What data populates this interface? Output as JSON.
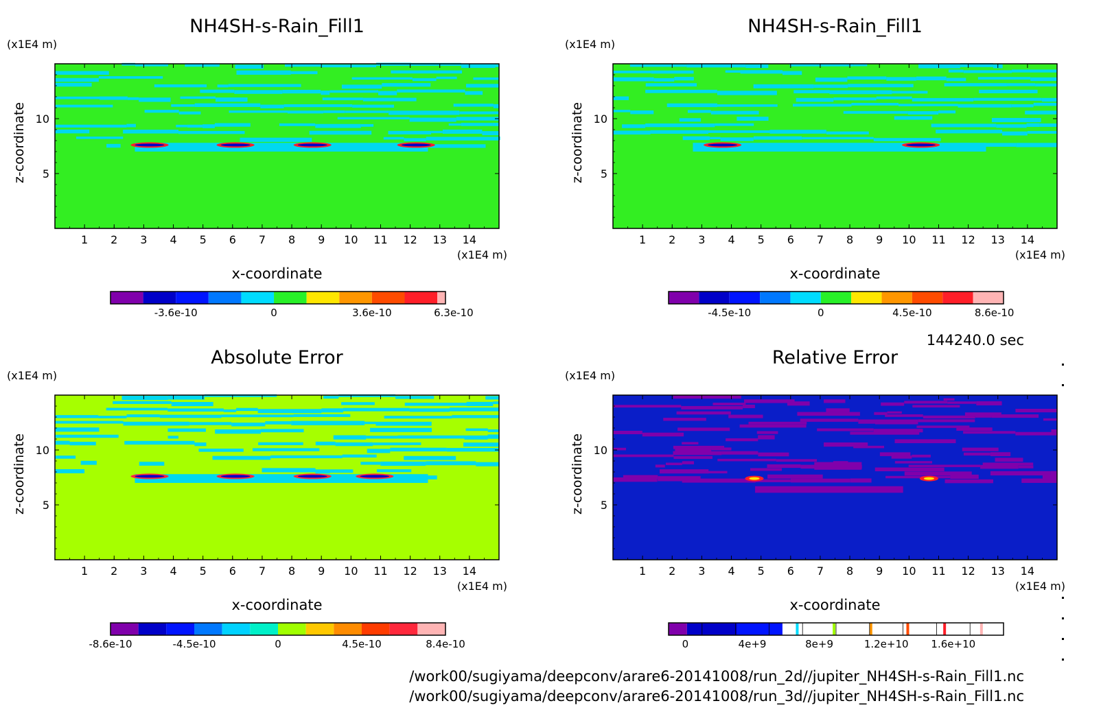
{
  "time_label": "144240.0 sec",
  "footer": {
    "path1": "/work00/sugiyama/deepconv/arare6-20141008/run_2d//jupiter_NH4SH-s-Rain_Fill1.nc",
    "path2": "/work00/sugiyama/deepconv/arare6-20141008/run_3d//jupiter_NH4SH-s-Rain_Fill1.nc"
  },
  "colors": {
    "palette11": [
      "#8000ab",
      "#0000c8",
      "#0014ff",
      "#0078ff",
      "#00dcff",
      "#28f028",
      "#ffe600",
      "#ff9600",
      "#ff4b00",
      "#ff1e28",
      "#ffb4b4"
    ],
    "palette12": [
      "#8000ab",
      "#0000c8",
      "#0014ff",
      "#0078ff",
      "#00d2ff",
      "#00f0c8",
      "#a0ff00",
      "#ffc800",
      "#ff8c00",
      "#ff3c00",
      "#ff283c",
      "#ffb4b4"
    ],
    "panel_bg_green": "#33ee22",
    "panel_bg_lime": "#a6ff00",
    "panel_bg_blue": "#0a1ec8",
    "band_cyan": "#00d8f0",
    "band_purple": "#8000ab"
  },
  "chart_data": [
    {
      "type": "heatmap",
      "title": "NH4SH-s-Rain_Fill1",
      "xlabel": "x-coordinate",
      "ylabel": "z-coordinate",
      "x_unit": "(x1E4 m)",
      "y_unit": "(x1E4 m)",
      "xticks": [
        "1",
        "2",
        "3",
        "4",
        "5",
        "6",
        "7",
        "8",
        "9",
        "10",
        "11",
        "12",
        "13",
        "14"
      ],
      "yticks": [
        "5",
        "10"
      ],
      "xlim": [
        0,
        15
      ],
      "ylim": [
        0,
        15
      ],
      "colorbar_labels": [
        {
          "text": "-3.6e-10",
          "seg": 2
        },
        {
          "text": "0",
          "seg": 5
        },
        {
          "text": "3.6e-10",
          "seg": 8
        },
        {
          "text": "6.3e-10",
          "seg": 10.5
        }
      ],
      "colorbar_segments": 11,
      "colorbar_last_narrow": true,
      "background": "#33ee22",
      "band_color": "#00d8f0",
      "cells": [
        [
          2.7,
          7.6
        ],
        [
          5.6,
          7.6
        ],
        [
          8.2,
          7.6
        ],
        [
          11.7,
          7.6
        ]
      ]
    },
    {
      "type": "heatmap",
      "title": "NH4SH-s-Rain_Fill1",
      "xlabel": "x-coordinate",
      "ylabel": "z-coordinate",
      "x_unit": "(x1E4 m)",
      "y_unit": "(x1E4 m)",
      "xticks": [
        "1",
        "2",
        "3",
        "4",
        "5",
        "6",
        "7",
        "8",
        "9",
        "10",
        "11",
        "12",
        "13",
        "14"
      ],
      "yticks": [
        "5",
        "10"
      ],
      "xlim": [
        0,
        15
      ],
      "ylim": [
        0,
        15
      ],
      "colorbar_labels": [
        {
          "text": "-4.5e-10",
          "seg": 2
        },
        {
          "text": "0",
          "seg": 5
        },
        {
          "text": "4.5e-10",
          "seg": 8
        },
        {
          "text": "8.6e-10",
          "seg": 10.7
        }
      ],
      "colorbar_segments": 11,
      "colorbar_last_narrow": false,
      "background": "#33ee22",
      "band_color": "#00d8f0",
      "cells": [
        [
          3.2,
          7.6
        ],
        [
          9.9,
          7.6
        ]
      ]
    },
    {
      "type": "heatmap",
      "title": "Absolute Error",
      "xlabel": "x-coordinate",
      "ylabel": "z-coordinate",
      "x_unit": "(x1E4 m)",
      "y_unit": "(x1E4 m)",
      "xticks": [
        "1",
        "2",
        "3",
        "4",
        "5",
        "6",
        "7",
        "8",
        "9",
        "10",
        "11",
        "12",
        "13",
        "14"
      ],
      "yticks": [
        "5",
        "10"
      ],
      "xlim": [
        0,
        15
      ],
      "ylim": [
        0,
        15
      ],
      "colorbar_labels": [
        {
          "text": "-8.6e-10",
          "seg": 0
        },
        {
          "text": "-4.5e-10",
          "seg": 3
        },
        {
          "text": "0",
          "seg": 6
        },
        {
          "text": "4.5e-10",
          "seg": 9
        },
        {
          "text": "8.4e-10",
          "seg": 12
        }
      ],
      "colorbar_segments": 12,
      "colorbar_last_narrow": false,
      "background": "#a6ff00",
      "band_color": "#00d8f0",
      "cells": [
        [
          2.7,
          7.6
        ],
        [
          5.6,
          7.6
        ],
        [
          8.2,
          7.6
        ],
        [
          10.3,
          7.6
        ]
      ]
    },
    {
      "type": "heatmap",
      "title": "Relative Error",
      "xlabel": "x-coordinate",
      "ylabel": "z-coordinate",
      "x_unit": "(x1E4 m)",
      "y_unit": "(x1E4 m)",
      "xticks": [
        "1",
        "2",
        "3",
        "4",
        "5",
        "6",
        "7",
        "8",
        "9",
        "10",
        "11",
        "12",
        "13",
        "14"
      ],
      "yticks": [
        "5",
        "10"
      ],
      "xlim": [
        0,
        15
      ],
      "ylim": [
        0,
        15
      ],
      "colorbar_labels": [
        {
          "text": "0",
          "seg": 0.5
        },
        {
          "text": "4e+9",
          "seg": 2.5
        },
        {
          "text": "8e+9",
          "seg": 4.5
        },
        {
          "text": "1.2e+10",
          "seg": 6.5
        },
        {
          "text": "1.6e+10",
          "seg": 8.5
        }
      ],
      "colorbar_segments": 10,
      "colorbar_relative": true,
      "background": "#0a1ec8",
      "band_color": "#8000ab",
      "cells": [
        [
          4.6,
          7.4
        ],
        [
          10.5,
          7.4
        ]
      ]
    }
  ]
}
